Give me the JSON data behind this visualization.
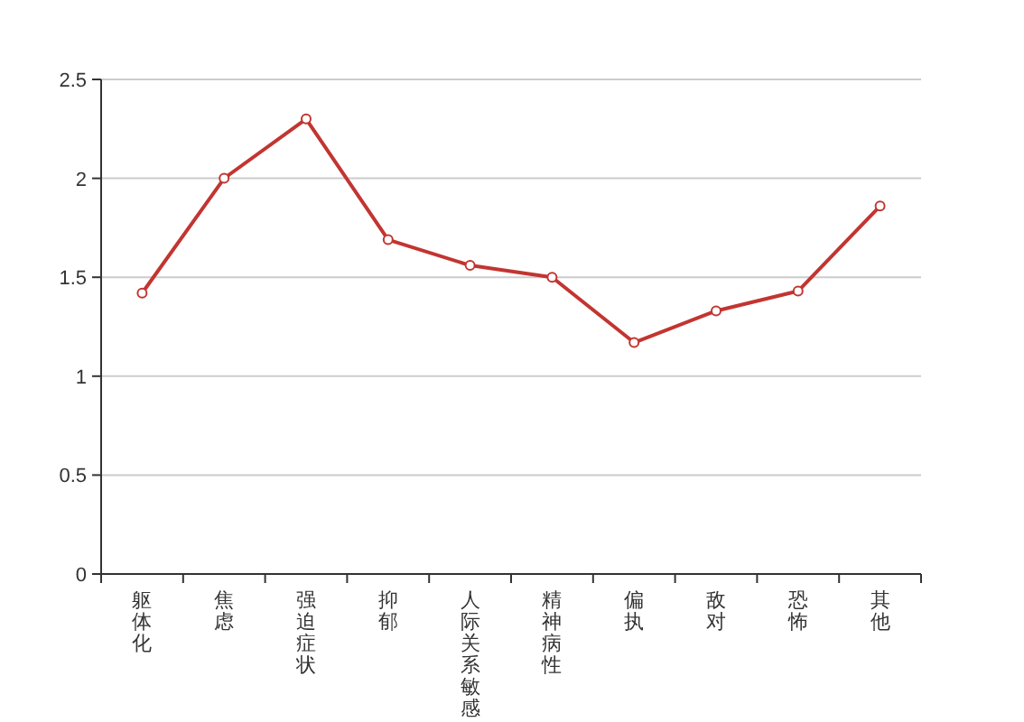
{
  "chart_data": {
    "type": "line",
    "categories": [
      "躯体化",
      "焦虑",
      "强迫症状",
      "抑郁",
      "人际关系敏感",
      "精神病性",
      "偏执",
      "敌对",
      "恐怖",
      "其他"
    ],
    "series": [
      {
        "color": "#c23531",
        "values": [
          1.42,
          2.0,
          2.3,
          1.69,
          1.56,
          1.5,
          1.17,
          1.33,
          1.43,
          1.86
        ]
      }
    ],
    "ylim": [
      0,
      2.5
    ],
    "yticks": [
      0,
      0.5,
      1,
      1.5,
      2,
      2.5
    ],
    "grid": "y",
    "marker": "circle",
    "line_style": "solid"
  }
}
